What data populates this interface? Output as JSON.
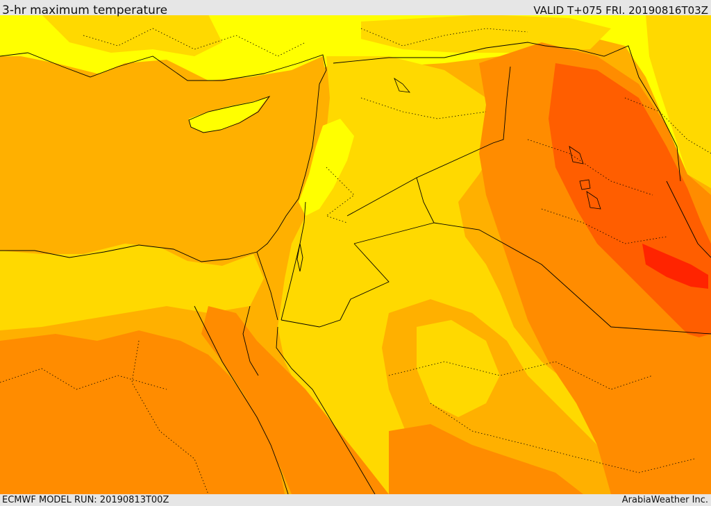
{
  "header": {
    "title": "3-hr maximum temperature",
    "valid_time": "VALID T+075 FRI. 20190816T03Z"
  },
  "footer": {
    "model_run": "ECMWF MODEL RUN: 20190813T00Z",
    "credit": "ArabiaWeather Inc."
  },
  "map": {
    "colors": {
      "sea_mediterranean": "#ffb000",
      "band_yellow": "#ffff00",
      "band_light": "#ffd900",
      "band_orange": "#ffb000",
      "band_dark_orange": "#ff8c00",
      "band_red_orange": "#ff5e00",
      "band_red": "#ff2400",
      "border_line": "#000000"
    }
  }
}
